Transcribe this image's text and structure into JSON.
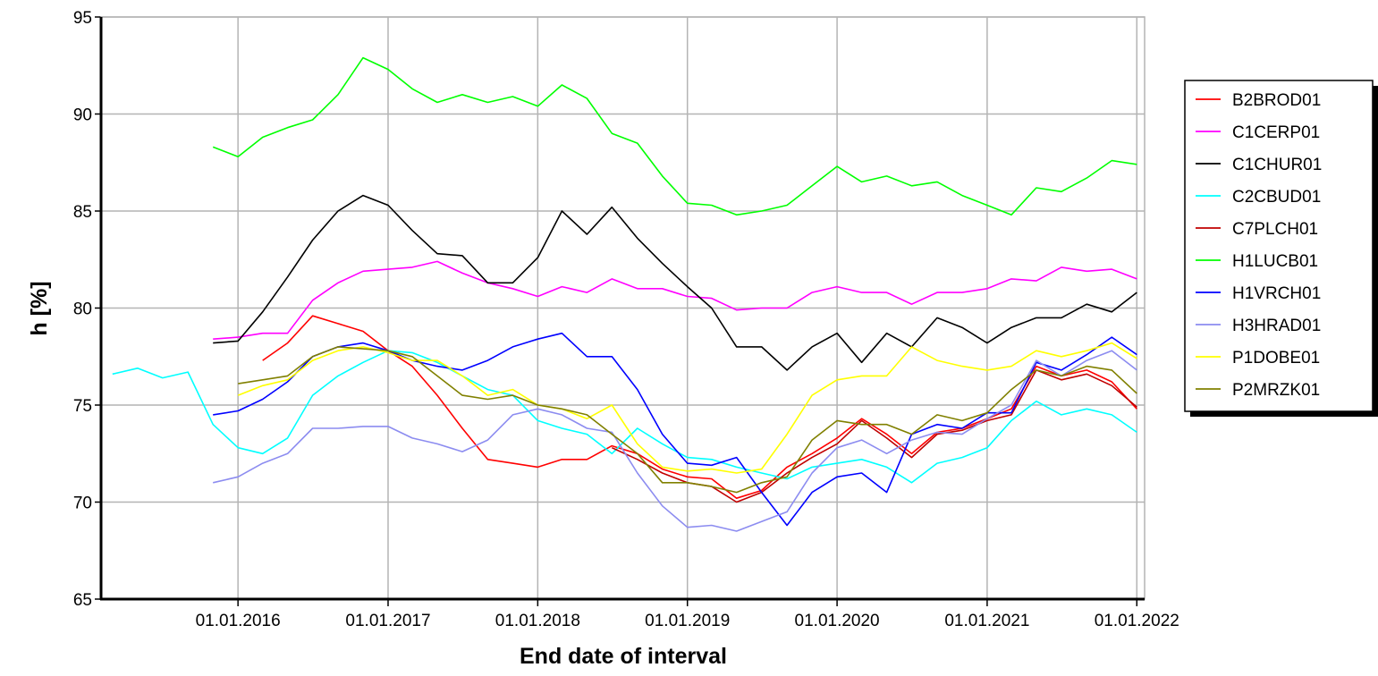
{
  "chart_data": {
    "type": "line",
    "x_label": "End date of interval",
    "y_label": "h [%]",
    "x": [
      "2015-03-01",
      "2015-05-01",
      "2015-07-01",
      "2015-09-01",
      "2015-11-01",
      "2016-01-01",
      "2016-03-01",
      "2016-05-01",
      "2016-07-01",
      "2016-09-01",
      "2016-11-01",
      "2017-01-01",
      "2017-03-01",
      "2017-05-01",
      "2017-07-01",
      "2017-09-01",
      "2017-11-01",
      "2018-01-01",
      "2018-03-01",
      "2018-05-01",
      "2018-07-01",
      "2018-09-01",
      "2018-11-01",
      "2019-01-01",
      "2019-03-01",
      "2019-05-01",
      "2019-07-01",
      "2019-09-01",
      "2019-11-01",
      "2020-01-01",
      "2020-03-01",
      "2020-05-01",
      "2020-07-01",
      "2020-09-01",
      "2020-11-01",
      "2021-01-01",
      "2021-03-01",
      "2021-05-01",
      "2021-07-01",
      "2021-09-01",
      "2021-11-01",
      "2022-01-01"
    ],
    "xlim": [
      "2015-02-01",
      "2022-01-20"
    ],
    "xticks": [
      {
        "value": "2016-01-01",
        "label": "01.01.2016"
      },
      {
        "value": "2017-01-01",
        "label": "01.01.2017"
      },
      {
        "value": "2018-01-01",
        "label": "01.01.2018"
      },
      {
        "value": "2019-01-01",
        "label": "01.01.2019"
      },
      {
        "value": "2020-01-01",
        "label": "01.01.2020"
      },
      {
        "value": "2021-01-01",
        "label": "01.01.2021"
      },
      {
        "value": "2022-01-01",
        "label": "01.01.2022"
      }
    ],
    "ylim": [
      65,
      95
    ],
    "yticks": [
      65,
      70,
      75,
      80,
      85,
      90,
      95
    ],
    "grid": true,
    "legend": "right",
    "series": [
      {
        "name": "B2BROD01",
        "color": "#ff0000",
        "values": [
          null,
          null,
          null,
          null,
          null,
          null,
          77.3,
          78.2,
          79.6,
          79.2,
          78.8,
          77.8,
          77.0,
          75.5,
          73.8,
          72.2,
          72.0,
          71.8,
          72.2,
          72.2,
          72.9,
          72.5,
          71.7,
          71.3,
          71.2,
          70.2,
          70.6,
          71.8,
          72.5,
          73.3,
          74.3,
          73.5,
          72.5,
          73.6,
          73.8,
          74.3,
          74.8,
          77.0,
          76.5,
          76.8,
          76.2,
          74.8
        ]
      },
      {
        "name": "C1CERP01",
        "color": "#ff00ff",
        "values": [
          null,
          null,
          null,
          null,
          78.4,
          78.5,
          78.7,
          78.7,
          80.4,
          81.3,
          81.9,
          82.0,
          82.1,
          82.4,
          81.8,
          81.3,
          81.0,
          80.6,
          81.1,
          80.8,
          81.5,
          81.0,
          81.0,
          80.6,
          80.5,
          79.9,
          80.0,
          80.0,
          80.8,
          81.1,
          80.8,
          80.8,
          80.2,
          80.8,
          80.8,
          81.0,
          81.5,
          81.4,
          82.1,
          81.9,
          82.0,
          81.5
        ]
      },
      {
        "name": "C1CHUR01",
        "color": "#000000",
        "values": [
          null,
          null,
          null,
          null,
          78.2,
          78.3,
          79.8,
          81.6,
          83.5,
          85.0,
          85.8,
          85.3,
          84.0,
          82.8,
          82.7,
          81.3,
          81.3,
          82.6,
          85.0,
          83.8,
          85.2,
          83.6,
          82.3,
          81.1,
          80.0,
          78.0,
          78.0,
          76.8,
          78.0,
          78.7,
          77.2,
          78.7,
          78.0,
          79.5,
          79.0,
          78.2,
          79.0,
          79.5,
          79.5,
          80.2,
          79.8,
          80.8
        ]
      },
      {
        "name": "C2CBUD01",
        "color": "#00ffff",
        "values": [
          76.6,
          76.9,
          76.4,
          76.7,
          74.0,
          72.8,
          72.5,
          73.3,
          75.5,
          76.5,
          77.2,
          77.8,
          77.7,
          77.2,
          76.5,
          75.8,
          75.5,
          74.2,
          73.8,
          73.5,
          72.5,
          73.8,
          73.0,
          72.3,
          72.2,
          71.8,
          71.5,
          71.2,
          71.8,
          72.0,
          72.2,
          71.8,
          71.0,
          72.0,
          72.3,
          72.8,
          74.2,
          75.2,
          74.5,
          74.8,
          74.5,
          73.6
        ]
      },
      {
        "name": "C7PLCH01",
        "color": "#c00000",
        "values": [
          null,
          null,
          null,
          null,
          null,
          null,
          null,
          null,
          null,
          null,
          null,
          null,
          null,
          null,
          null,
          null,
          null,
          null,
          null,
          null,
          72.8,
          72.2,
          71.5,
          71.0,
          70.8,
          70.0,
          70.5,
          71.5,
          72.3,
          73.0,
          74.2,
          73.3,
          72.3,
          73.5,
          73.7,
          74.2,
          74.5,
          76.8,
          76.3,
          76.6,
          76.0,
          74.9
        ]
      },
      {
        "name": "H1LUCB01",
        "color": "#00ff00",
        "values": [
          null,
          null,
          null,
          null,
          88.3,
          87.8,
          88.8,
          89.3,
          89.7,
          91.0,
          92.9,
          92.3,
          91.3,
          90.6,
          91.0,
          90.6,
          90.9,
          90.4,
          91.5,
          90.8,
          89.0,
          88.5,
          86.8,
          85.4,
          85.3,
          84.8,
          85.0,
          85.3,
          86.3,
          87.3,
          86.5,
          86.8,
          86.3,
          86.5,
          85.8,
          85.3,
          84.8,
          86.2,
          86.0,
          86.7,
          87.6,
          87.4
        ]
      },
      {
        "name": "H1VRCH01",
        "color": "#0000ff",
        "values": [
          null,
          null,
          null,
          null,
          74.5,
          74.7,
          75.3,
          76.2,
          77.5,
          78.0,
          78.2,
          77.8,
          77.3,
          77.0,
          76.8,
          77.3,
          78.0,
          78.4,
          78.7,
          77.5,
          77.5,
          75.8,
          73.5,
          72.0,
          71.9,
          72.3,
          70.5,
          68.8,
          70.5,
          71.3,
          71.5,
          70.5,
          73.5,
          74.0,
          73.8,
          74.6,
          74.6,
          77.2,
          76.8,
          77.6,
          78.5,
          77.6
        ]
      },
      {
        "name": "H3HRAD01",
        "color": "#8c8cf0",
        "values": [
          null,
          null,
          null,
          null,
          71.0,
          71.3,
          72.0,
          72.5,
          73.8,
          73.8,
          73.9,
          73.9,
          73.3,
          73.0,
          72.6,
          73.2,
          74.5,
          74.8,
          74.5,
          73.8,
          73.6,
          71.5,
          69.8,
          68.7,
          68.8,
          68.5,
          69.0,
          69.5,
          71.5,
          72.8,
          73.2,
          72.5,
          73.2,
          73.6,
          73.5,
          74.3,
          75.0,
          77.3,
          76.5,
          77.3,
          77.8,
          76.8
        ]
      },
      {
        "name": "P1DOBE01",
        "color": "#ffff00",
        "values": [
          null,
          null,
          null,
          null,
          null,
          75.5,
          76.0,
          76.3,
          77.3,
          77.8,
          78.0,
          77.7,
          77.3,
          77.3,
          76.5,
          75.5,
          75.8,
          75.0,
          74.8,
          74.3,
          75.0,
          73.0,
          71.8,
          71.6,
          71.7,
          71.5,
          71.7,
          73.5,
          75.5,
          76.3,
          76.5,
          76.5,
          78.0,
          77.3,
          77.0,
          76.8,
          77.0,
          77.8,
          77.5,
          77.8,
          78.2,
          77.4
        ]
      },
      {
        "name": "P2MRZK01",
        "color": "#808000",
        "values": [
          null,
          null,
          null,
          null,
          null,
          76.1,
          76.3,
          76.5,
          77.5,
          78.0,
          77.9,
          77.8,
          77.5,
          76.5,
          75.5,
          75.3,
          75.5,
          75.0,
          74.8,
          74.5,
          73.5,
          72.5,
          71.0,
          71.0,
          70.8,
          70.5,
          71.0,
          71.3,
          73.2,
          74.2,
          74.0,
          74.0,
          73.5,
          74.5,
          74.2,
          74.6,
          75.8,
          76.8,
          76.5,
          77.0,
          76.8,
          75.6
        ]
      }
    ]
  }
}
